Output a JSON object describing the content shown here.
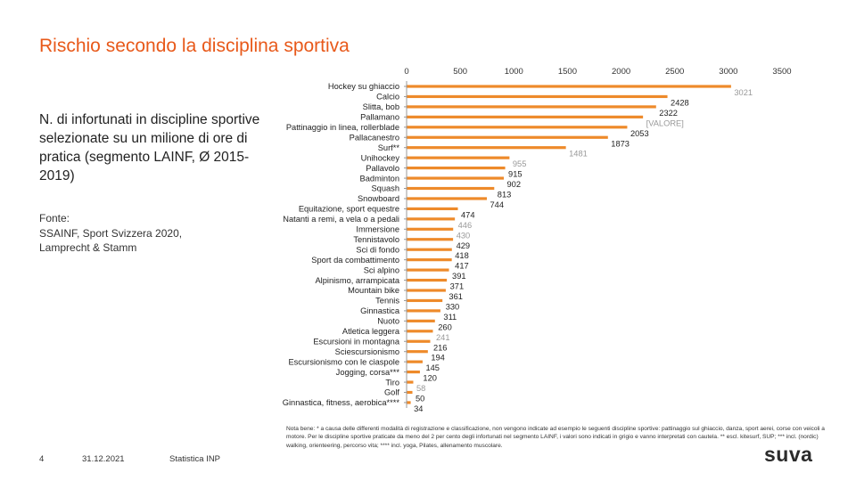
{
  "title": "Rischio secondo la disciplina sportiva",
  "subtitle": "N. di infortunati in discipline sportive selezionate su un milione di ore di pratica (segmento LAINF, Ø 2015-2019)",
  "source": [
    "Fonte:",
    "SSAINF, Sport Svizzera 2020,",
    "Lamprecht & Stamm"
  ],
  "footer": {
    "page": "4",
    "date": "31.12.2021",
    "department": "Statistica INP"
  },
  "logo": "suva",
  "note": "Nota bene: * a causa delle differenti modalità di registrazione e classificazione, non vengono indicate ad esempio le seguenti discipline sportive: pattinaggio sul ghiaccio, danza, sport aerei, corse con veicoli a motore. Per le discipline sportive praticate da meno del 2 per cento degli infortunati nel segmento LAINF, i valori sono indicati in grigio e vanno interpretati con cautela. ** escl. kitesurf, SUP; *** incl. (nordic) walking, orienteering, percorso vita; **** incl. yoga, Pilates, allenamento muscolare.",
  "colors": {
    "accent": "#e8591a",
    "bar": "#ee8a2a",
    "label": "#222222",
    "label_grey": "#999999",
    "axis": "#999999"
  },
  "chart_data": {
    "type": "bar",
    "orientation": "horizontal",
    "title": "",
    "xlabel": "",
    "ylabel": "",
    "xlim": [
      0,
      3500
    ],
    "ticks": [
      0,
      500,
      1000,
      1500,
      2000,
      2500,
      3000,
      3500
    ],
    "tick_position": "top",
    "grid": false,
    "categories": [
      "Hockey su ghiaccio",
      "Calcio",
      "Slitta, bob",
      "Pallamano",
      "Pattinaggio in linea, rollerblade",
      "Pallacanestro",
      "Surf**",
      "Unihockey",
      "Pallavolo",
      "Badminton",
      "Squash",
      "Snowboard",
      "Equitazione, sport equestre",
      "Natanti a remi, a vela o a pedali",
      "Immersione",
      "Tennistavolo",
      "Sci di fondo",
      "Sport da combattimento",
      "Sci alpino",
      "Alpinismo, arrampicata",
      "Mountain bike",
      "Tennis",
      "Ginnastica",
      "Nuoto",
      "Atletica leggera",
      "Escursioni in montagna",
      "Sciescursionismo",
      "Escursionismo con le ciaspole",
      "Jogging, corsa***",
      "Tiro",
      "Golf",
      "Ginnastica, fitness, aerobica****"
    ],
    "values": [
      3021,
      2428,
      2322,
      2200,
      2053,
      1873,
      1481,
      955,
      915,
      902,
      813,
      744,
      474,
      446,
      430,
      429,
      418,
      417,
      391,
      371,
      361,
      330,
      311,
      260,
      241,
      216,
      194,
      145,
      120,
      58,
      50,
      34
    ],
    "labels": [
      "3021",
      "2428",
      "2322",
      "[VALORE]",
      "2053",
      "1873",
      "1481",
      "955",
      "915",
      "902",
      "813",
      "744",
      "474",
      "446",
      "430",
      "429",
      "418",
      "417",
      "391",
      "371",
      "361",
      "330",
      "311",
      "260",
      "241",
      "216",
      "194",
      "145",
      "120",
      "58",
      "50",
      "34"
    ],
    "grey_labels": [
      true,
      false,
      false,
      true,
      false,
      false,
      true,
      true,
      false,
      false,
      false,
      false,
      false,
      true,
      true,
      false,
      false,
      false,
      false,
      false,
      false,
      false,
      false,
      false,
      true,
      false,
      false,
      false,
      false,
      true,
      false,
      false
    ]
  }
}
